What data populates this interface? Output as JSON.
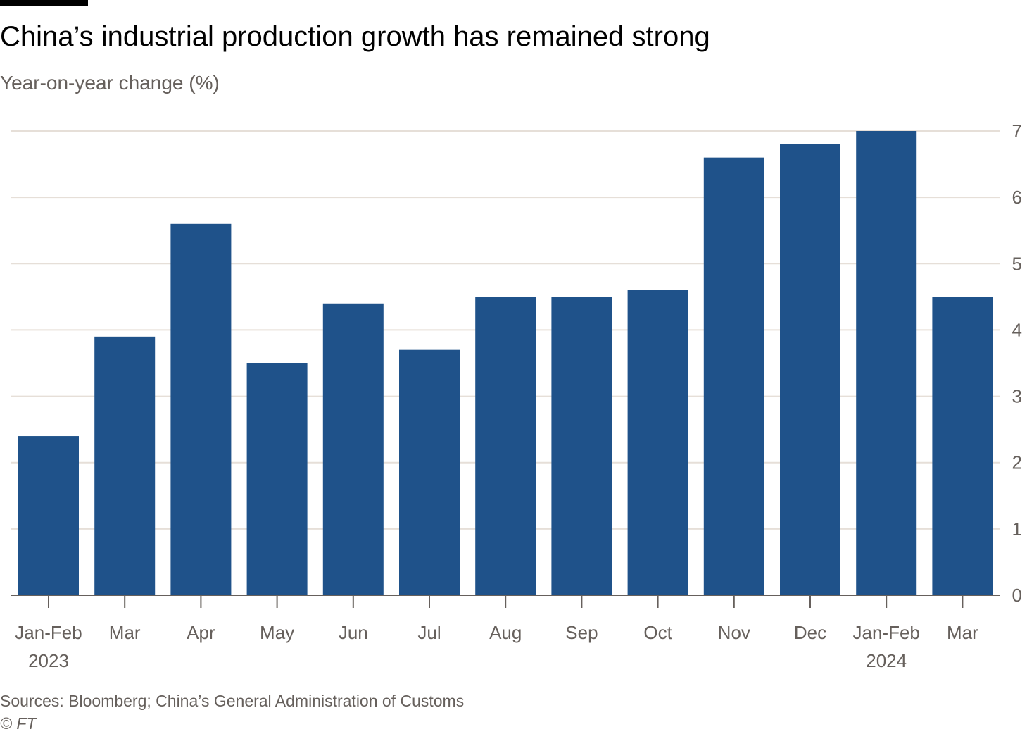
{
  "title": "China’s industrial production growth has remained strong",
  "subtitle": "Year-on-year change (%)",
  "source": "Sources: Bloomberg; China’s General Administration of Customs",
  "credit": "© FT",
  "colors": {
    "bar": "#1f528a",
    "gridline": "#e6dfd8",
    "axis": "#66605c",
    "text_muted": "#66605c"
  },
  "chart_data": {
    "type": "bar",
    "categories": [
      "Jan-Feb",
      "Mar",
      "Apr",
      "May",
      "Jun",
      "Jul",
      "Aug",
      "Sep",
      "Oct",
      "Nov",
      "Dec",
      "Jan-Feb",
      "Mar"
    ],
    "category_sublabels": [
      "2023",
      "",
      "",
      "",
      "",
      "",
      "",
      "",
      "",
      "",
      "",
      "2024",
      ""
    ],
    "values": [
      2.4,
      3.9,
      5.6,
      3.5,
      4.4,
      3.7,
      4.5,
      4.5,
      4.6,
      6.6,
      6.8,
      7.0,
      4.5
    ],
    "ylim": [
      0,
      7
    ],
    "yticks": [
      0,
      1,
      2,
      3,
      4,
      5,
      6,
      7
    ],
    "y_axis_position": "right",
    "grid": true,
    "legend": "none",
    "title": "China’s industrial production growth has remained strong",
    "ylabel": "Year-on-year change (%)",
    "xlabel": ""
  }
}
